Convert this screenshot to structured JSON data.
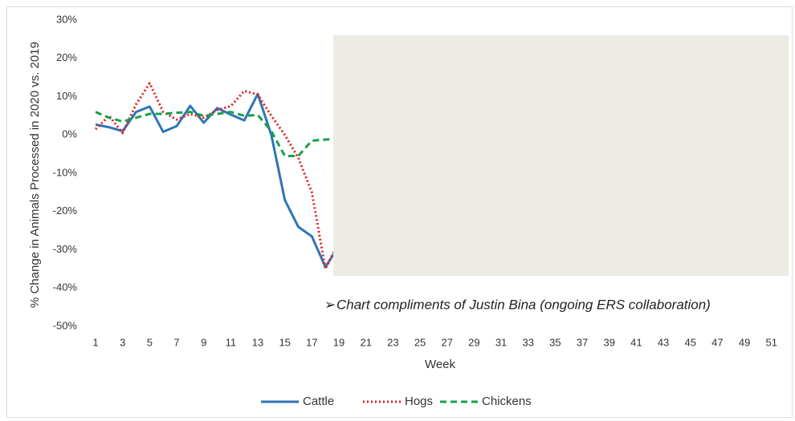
{
  "chart_data": {
    "type": "line",
    "x_label": "Week",
    "y_label": "% Change in Animals Processed in 2020 vs. 2019",
    "annotation": "Chart compliments of Justin Bina (ongoing ERS collaboration)",
    "categories": [
      "1",
      null,
      "3",
      null,
      "5",
      null,
      "7",
      null,
      "9",
      null,
      "11",
      null,
      "13",
      null,
      "15",
      null,
      "17",
      null,
      "19",
      null,
      "21",
      null,
      "23",
      null,
      "25",
      null,
      "27",
      null,
      "29",
      null,
      "31",
      null,
      "33",
      null,
      "35",
      null,
      "37",
      null,
      "39",
      null,
      "41",
      null,
      "43",
      null,
      "45",
      null,
      "47",
      null,
      "49",
      null,
      "51",
      null
    ],
    "series": [
      {
        "name": "Cattle",
        "color": "#2e75b6",
        "style": "solid",
        "values": [
          2.7,
          2,
          1,
          6,
          7.4,
          0.8,
          2.3,
          7.6,
          3.2,
          7,
          5.3,
          3.8,
          10.7,
          0,
          -17,
          -24,
          -26.5,
          -34.5,
          -29,
          null,
          null,
          null,
          null,
          null,
          null,
          null,
          null,
          null,
          null,
          null,
          null,
          null,
          null,
          null,
          null,
          null,
          null,
          null,
          null,
          null,
          null,
          null,
          null,
          null,
          null,
          null,
          null,
          null,
          null,
          null,
          null,
          null
        ]
      },
      {
        "name": "Hogs",
        "color": "#e02020",
        "style": "dotted",
        "values": [
          1.5,
          5,
          0.5,
          8,
          13.5,
          6,
          4,
          5.5,
          4.5,
          6.5,
          7.5,
          11.5,
          10.5,
          5,
          0,
          -6,
          -15,
          -35,
          -28,
          null,
          null,
          null,
          null,
          null,
          null,
          null,
          null,
          null,
          null,
          null,
          null,
          null,
          null,
          null,
          null,
          null,
          null,
          null,
          null,
          null,
          null,
          null,
          null,
          null,
          null,
          null,
          null,
          null,
          null,
          null,
          null,
          null
        ]
      },
      {
        "name": "Chickens",
        "color": "#1aa04a",
        "style": "dashed",
        "values": [
          6,
          4.5,
          3.5,
          4.5,
          5.5,
          5.5,
          5.8,
          6,
          5,
          5.5,
          6,
          5,
          5.2,
          1,
          -5.5,
          -5.5,
          -1.5,
          -1.2,
          -1,
          null,
          null,
          null,
          null,
          null,
          null,
          null,
          null,
          null,
          null,
          null,
          null,
          null,
          null,
          null,
          null,
          null,
          null,
          null,
          null,
          null,
          null,
          null,
          null,
          null,
          null,
          null,
          null,
          null,
          null,
          null,
          null,
          null
        ]
      }
    ],
    "ylim": [
      -50,
      30
    ],
    "yticks": [
      {
        "value": -50,
        "label": "-50%"
      },
      {
        "value": -40,
        "label": "-40%"
      },
      {
        "value": -30,
        "label": "-30%"
      },
      {
        "value": -20,
        "label": "-20%"
      },
      {
        "value": -10,
        "label": "-10%"
      },
      {
        "value": 0,
        "label": "0%"
      },
      {
        "value": 10,
        "label": "10%"
      },
      {
        "value": 20,
        "label": "20%"
      },
      {
        "value": 30,
        "label": "30%"
      }
    ],
    "legend": "bottom"
  }
}
